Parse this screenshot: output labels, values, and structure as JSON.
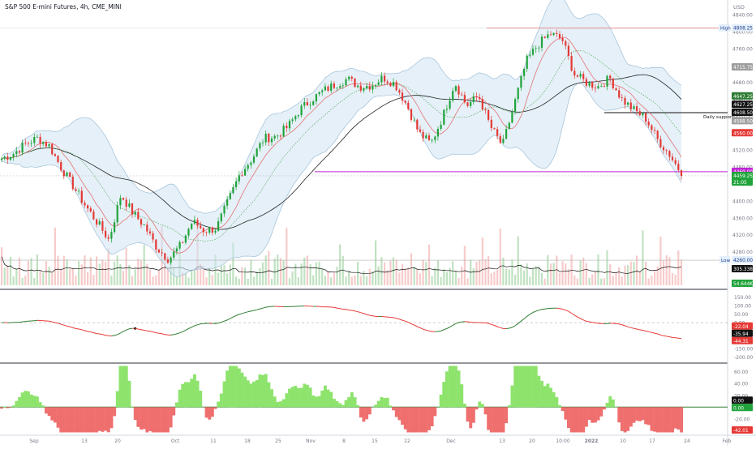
{
  "symbol_title": "S&P 500 E-mini Futures, 4h, CME_MINI",
  "currency": "USD",
  "colors": {
    "up": "#26a69a",
    "up_bright": "#21a33b",
    "down": "#e53935",
    "band_fill": "#cfe3f3",
    "band_line": "#9fbfd8",
    "ma_red": "#e57373",
    "ma_black": "#222222",
    "high_line": "#ef5350",
    "low_line": "#b0b0b0",
    "support_line": "#111111",
    "magenta_line": "#c026d3",
    "osc_pos": "#8ee36d",
    "osc_neg": "#ef6f6f"
  },
  "price_axis": {
    "ticks": [
      "4840.00",
      "4800.00",
      "4760.00",
      "4720.00",
      "4680.00",
      "4640.00",
      "4600.00",
      "4560.00",
      "4520.00",
      "4480.00",
      "4440.00",
      "4400.00",
      "4360.00",
      "4320.00",
      "4280.00"
    ],
    "ylim": [
      4195,
      4865
    ]
  },
  "price_badges": {
    "high": {
      "label": "High",
      "value": "4808.25"
    },
    "p4715": "4715.75",
    "p4647": "4647.25",
    "p4627": "4627.25",
    "p4608": "4608.50",
    "support": "Daily support",
    "p4588": "4588.50",
    "p4560": "4560.00",
    "p4469": "4469.00",
    "p4459": "4459.25",
    "countdown": "21:05",
    "low": {
      "label": "Low",
      "value": "4260.00"
    },
    "vol_ma": "305.338K",
    "vol": "54.644K"
  },
  "osc1_axis": {
    "ticks": [
      "150.00",
      "100.00",
      "50.00",
      "0.00",
      "-50.00",
      "-100.00",
      "-150.00",
      "-200.00"
    ],
    "ylim": [
      -230,
      170
    ]
  },
  "osc1_badges": {
    "a": "-22.04",
    "b": "-35.94",
    "c": "-44.31"
  },
  "osc2_axis": {
    "ticks": [
      "60.00",
      "40.00",
      "20.00",
      "0.00",
      "-20.00",
      "-40.00"
    ],
    "ylim": [
      -45,
      72
    ]
  },
  "osc2_badges": {
    "a": "0.00",
    "b": "0.00",
    "c": "-42.01"
  },
  "time_axis": {
    "labels": [
      "Sep",
      "13",
      "20",
      "Oct",
      "11",
      "18",
      "25",
      "Nov",
      "8",
      "15",
      "22",
      "Dec",
      "13",
      "20",
      "10:00",
      "2022",
      "10",
      "17",
      "24",
      "Feb"
    ]
  },
  "chart_data": {
    "type": "candlestick",
    "title": "S&P 500 E-mini Futures, 4h, CME_MINI",
    "x_labels": [
      "Sep",
      "13",
      "20",
      "Oct",
      "11",
      "18",
      "25",
      "Nov",
      "8",
      "15",
      "22",
      "Dec",
      "13",
      "20",
      "10:00",
      "2022",
      "10",
      "17",
      "24",
      "Feb"
    ],
    "anchors_price_close": [
      4500,
      4512,
      4535,
      4548,
      4530,
      4478,
      4435,
      4390,
      4350,
      4308,
      4415,
      4372,
      4340,
      4290,
      4262,
      4295,
      4352,
      4330,
      4335,
      4400,
      4465,
      4500,
      4548,
      4552,
      4575,
      4615,
      4640,
      4660,
      4676,
      4688,
      4670,
      4673,
      4692,
      4676,
      4625,
      4560,
      4535,
      4600,
      4680,
      4625,
      4648,
      4575,
      4530,
      4630,
      4730,
      4770,
      4795,
      4782,
      4700,
      4680,
      4670,
      4690,
      4640,
      4615,
      4595,
      4545,
      4510,
      4465
    ],
    "levels": {
      "high": 4808.25,
      "low": 4260.0,
      "daily_support": 4608.5,
      "last": 4459.25,
      "magenta": 4469.0
    },
    "volume_ma": "305.338K",
    "volume": "54.644K",
    "oscillator_1": {
      "ylim": [
        -230,
        170
      ],
      "latest": [
        -22.04,
        -35.94,
        -44.31
      ]
    },
    "oscillator_2": {
      "ylim": [
        -45,
        72
      ],
      "latest": [
        0.0,
        0.0,
        -42.01
      ]
    }
  }
}
